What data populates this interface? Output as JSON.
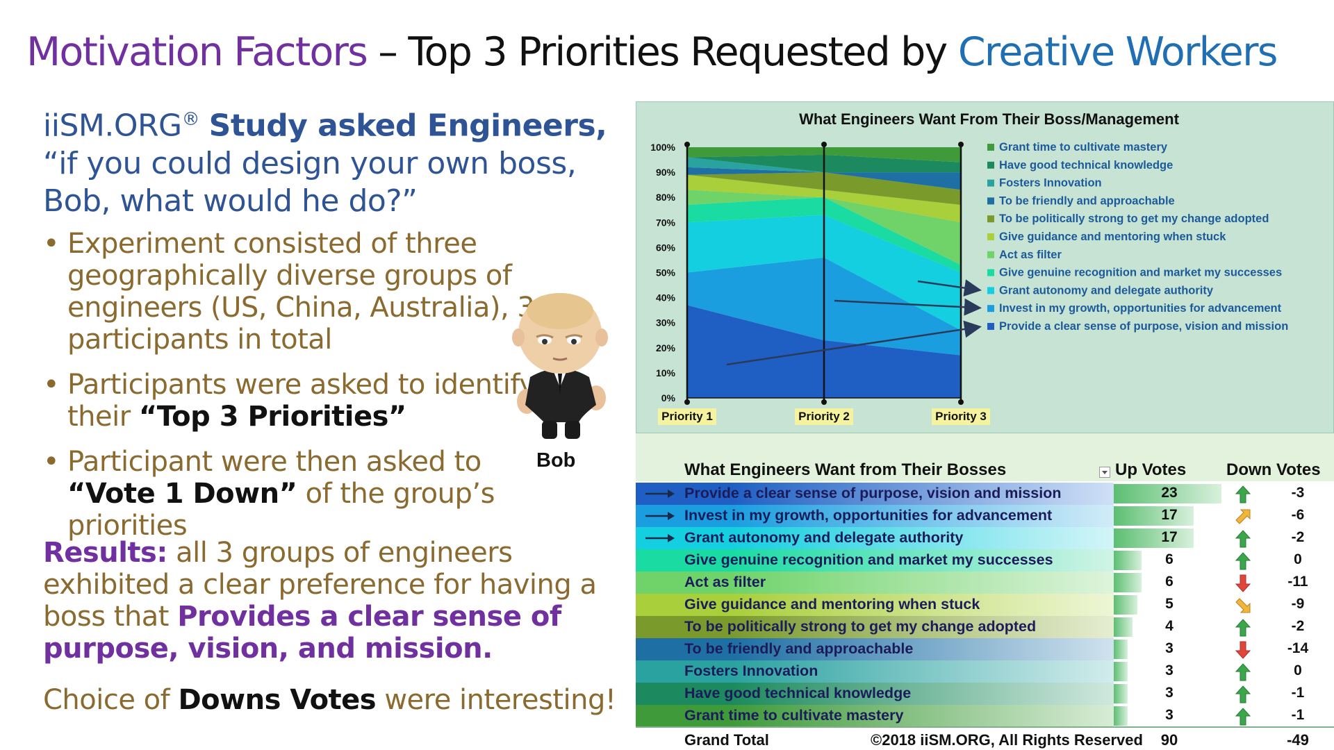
{
  "title": {
    "part1": "Motivation Factors",
    "part2": " – Top 3 Priorities Requested by ",
    "part3": "Creative Workers"
  },
  "intro": {
    "org": "iiSM.ORG",
    "reg": "®",
    "lead": "Study asked Engineers,",
    "question": "“if you could design your own boss, Bob, what would he do?”"
  },
  "bullets": [
    {
      "text": "Experiment consisted of three geographically diverse groups of engineers (US, China, Australia), 30 participants in total",
      "bold": ""
    },
    {
      "text": "Participants were asked to identify their ",
      "bold": "“Top 3 Priorities”"
    },
    {
      "bold": "“Vote 1 Down”",
      "prefix": "Participant were then asked to ",
      "suffix": " of the group’s priorities"
    }
  ],
  "results": {
    "label": "Results:",
    "text": " all 3 groups of engineers exhibited a clear preference for having a boss that ",
    "highlight": "Provides a clear sense of purpose, vision, and mission."
  },
  "choice": {
    "prefix": "Choice of ",
    "bold": "Downs Votes",
    "suffix": " were interesting!"
  },
  "bob_label": "Bob",
  "chart_data": {
    "type": "area",
    "title": "What Engineers Want From Their Boss/Management",
    "x": [
      "Priority 1",
      "Priority 2",
      "Priority 3"
    ],
    "ylim": [
      0,
      100
    ],
    "yticks": [
      "0%",
      "10%",
      "20%",
      "30%",
      "40%",
      "50%",
      "60%",
      "70%",
      "80%",
      "90%",
      "100%"
    ],
    "stacked_percent": true,
    "series": [
      {
        "name": "Provide a clear sense of purpose, vision and mission",
        "color": "#1f5fc4",
        "values": [
          37,
          23,
          17
        ]
      },
      {
        "name": "Invest in my growth, opportunities for advancement",
        "color": "#1a9ee0",
        "values": [
          13,
          33,
          10
        ]
      },
      {
        "name": "Grant autonomy and delegate authority",
        "color": "#14cfe0",
        "values": [
          20,
          17,
          23
        ]
      },
      {
        "name": "Give genuine recognition and market my successes",
        "color": "#1adba2",
        "values": [
          7,
          7,
          3
        ]
      },
      {
        "name": "Act as filter",
        "color": "#6fd36a",
        "values": [
          6,
          0,
          17
        ]
      },
      {
        "name": "Give guidance and mentoring when stuck",
        "color": "#a9cf3a",
        "values": [
          6,
          3,
          7
        ]
      },
      {
        "name": "To be politically strong to get my change adopted",
        "color": "#7a9a2c",
        "values": [
          0,
          7,
          6
        ]
      },
      {
        "name": "To be friendly and approachable",
        "color": "#1e6fa4",
        "values": [
          3,
          0,
          7
        ]
      },
      {
        "name": "Fosters Innovation",
        "color": "#2aa2a0",
        "values": [
          4,
          0,
          0
        ]
      },
      {
        "name": "Have good technical knowledge",
        "color": "#1c8a5e",
        "values": [
          0,
          7,
          4
        ]
      },
      {
        "name": "Grant time to cultivate mastery",
        "color": "#3f9a3a",
        "values": [
          4,
          3,
          6
        ]
      }
    ]
  },
  "table": {
    "header": {
      "name": "What Engineers Want from Their Bosses",
      "up": "Up Votes",
      "down": "Down Votes"
    },
    "max_up": 23,
    "rows": [
      {
        "name": "Provide a clear sense of purpose, vision and mission",
        "up": "23",
        "down": "-3",
        "up_value": 23,
        "icon": "up",
        "arrow": true,
        "color1": "#1f5fc4",
        "color2": "#cfe0f6"
      },
      {
        "name": "Invest in my growth, opportunities for advancement",
        "up": "17",
        "down": "-6",
        "up_value": 17,
        "icon": "up-right",
        "arrow": true,
        "color1": "#1a9ee0",
        "color2": "#d2ecf8"
      },
      {
        "name": "Grant autonomy and delegate authority",
        "up": "17",
        "down": "-2",
        "up_value": 17,
        "icon": "up",
        "arrow": true,
        "color1": "#14cfe0",
        "color2": "#d4f5f8"
      },
      {
        "name": "Give genuine recognition and market my successes",
        "up": "6",
        "down": "0",
        "up_value": 6,
        "icon": "up",
        "arrow": false,
        "color1": "#1adba2",
        "color2": "#d0f4e6"
      },
      {
        "name": "Act as filter",
        "up": "6",
        "down": "-11",
        "up_value": 6,
        "icon": "down",
        "arrow": false,
        "color1": "#6fd36a",
        "color2": "#def4dc"
      },
      {
        "name": "Give guidance and mentoring when stuck",
        "up": "5",
        "down": "-9",
        "up_value": 5,
        "icon": "down-right",
        "arrow": false,
        "color1": "#a9cf3a",
        "color2": "#eef6d6"
      },
      {
        "name": "To be politically strong to get my change adopted",
        "up": "4",
        "down": "-2",
        "up_value": 4,
        "icon": "up",
        "arrow": false,
        "color1": "#7a9a2c",
        "color2": "#e6edd2"
      },
      {
        "name": "To be friendly and approachable",
        "up": "3",
        "down": "-14",
        "up_value": 3,
        "icon": "down",
        "arrow": false,
        "color1": "#1e6fa4",
        "color2": "#d0e2ee"
      },
      {
        "name": "Fosters Innovation",
        "up": "3",
        "down": "0",
        "up_value": 3,
        "icon": "up",
        "arrow": false,
        "color1": "#2aa2a0",
        "color2": "#d2ecec"
      },
      {
        "name": "Have good technical knowledge",
        "up": "3",
        "down": "-1",
        "up_value": 3,
        "icon": "up",
        "arrow": false,
        "color1": "#1c8a5e",
        "color2": "#d0e8de"
      },
      {
        "name": "Grant time to cultivate mastery",
        "up": "3",
        "down": "-1",
        "up_value": 3,
        "icon": "up",
        "arrow": false,
        "color1": "#3f9a3a",
        "color2": "#d8ecd6"
      }
    ],
    "total": {
      "label": "Grand Total",
      "up": "90",
      "down": "-49"
    },
    "copyright": "©2018 iiSM.ORG, All Rights Reserved"
  }
}
